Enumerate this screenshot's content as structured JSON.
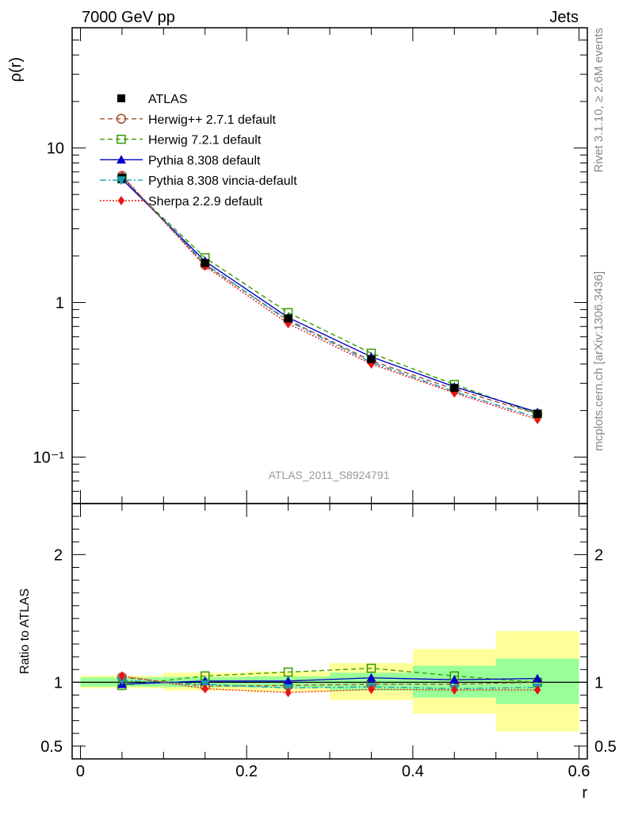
{
  "header": {
    "left": "7000 GeV pp",
    "right": "Jets"
  },
  "side": {
    "rivet": "Rivet 3.1.10, ≥ 2.6M events",
    "mcplots": "mcplots.cern.ch [arXiv:1306.3436]"
  },
  "watermark": "ATLAS_2011_S8924791",
  "chart_data": [
    {
      "type": "line",
      "panel": "main",
      "ylabel": "ρ(r)",
      "yscale": "log",
      "ylim": [
        0.05,
        60
      ],
      "xlim": [
        -0.01,
        0.61
      ],
      "ytick_labels": [
        "10⁻¹",
        "1",
        "10"
      ],
      "x": [
        0.05,
        0.15,
        0.25,
        0.35,
        0.45,
        0.55
      ],
      "series": [
        {
          "name": "ATLAS",
          "color": "#000000",
          "marker": "square-filled",
          "dash": "none",
          "values": [
            6.4,
            1.8,
            0.79,
            0.43,
            0.28,
            0.19
          ]
        },
        {
          "name": "Herwig++ 2.7.1 default",
          "color": "#a0522d",
          "marker": "circle-open",
          "dash": "dashed",
          "values": [
            6.6,
            1.75,
            0.77,
            0.42,
            0.275,
            0.19
          ]
        },
        {
          "name": "Herwig 7.2.1 default",
          "color": "#339900",
          "marker": "square-open",
          "dash": "dashed",
          "values": [
            6.3,
            1.95,
            0.86,
            0.47,
            0.295,
            0.19
          ]
        },
        {
          "name": "Pythia 8.308 default",
          "color": "#0000cc",
          "marker": "triangle-up",
          "dash": "solid",
          "values": [
            6.3,
            1.85,
            0.8,
            0.445,
            0.285,
            0.195
          ]
        },
        {
          "name": "Pythia 8.308 vincia-default",
          "color": "#1a9ab0",
          "marker": "triangle-down",
          "dash": "dashdot",
          "values": [
            6.5,
            1.78,
            0.76,
            0.41,
            0.265,
            0.18
          ]
        },
        {
          "name": "Sherpa 2.2.9 default",
          "color": "#ee1111",
          "marker": "diamond",
          "dash": "dotted",
          "values": [
            6.6,
            1.72,
            0.73,
            0.4,
            0.26,
            0.175
          ]
        }
      ]
    },
    {
      "type": "line",
      "panel": "ratio",
      "xlabel": "r",
      "ylabel": "Ratio to ATLAS",
      "ylim": [
        0.4,
        2.4
      ],
      "xlim": [
        -0.01,
        0.61
      ],
      "xtick_labels": [
        "0",
        "0.2",
        "0.4",
        "0.6"
      ],
      "ytick_labels": [
        "0.5",
        "1",
        "2"
      ],
      "bands": [
        {
          "x0": 0.0,
          "x1": 0.1,
          "yellow": [
            0.953,
            1.052
          ],
          "green": [
            0.966,
            1.038
          ]
        },
        {
          "x0": 0.1,
          "x1": 0.2,
          "yellow": [
            0.935,
            1.075
          ],
          "green": [
            0.962,
            1.042
          ]
        },
        {
          "x0": 0.2,
          "x1": 0.3,
          "yellow": [
            0.925,
            1.085
          ],
          "green": [
            0.958,
            1.046
          ]
        },
        {
          "x0": 0.3,
          "x1": 0.4,
          "yellow": [
            0.862,
            1.15
          ],
          "green": [
            0.935,
            1.075
          ]
        },
        {
          "x0": 0.4,
          "x1": 0.5,
          "yellow": [
            0.755,
            1.26
          ],
          "green": [
            0.88,
            1.13
          ]
        },
        {
          "x0": 0.5,
          "x1": 0.6,
          "yellow": [
            0.615,
            1.4
          ],
          "green": [
            0.83,
            1.185
          ]
        }
      ],
      "x": [
        0.05,
        0.15,
        0.25,
        0.35,
        0.45,
        0.55
      ],
      "series": [
        {
          "name": "Herwig++ 2.7.1 default",
          "values": [
            1.04,
            0.97,
            0.975,
            0.985,
            0.985,
            1.0
          ]
        },
        {
          "name": "Herwig 7.2.1 default",
          "values": [
            0.975,
            1.05,
            1.08,
            1.11,
            1.05,
            1.0
          ]
        },
        {
          "name": "Pythia 8.308 default",
          "values": [
            0.985,
            1.01,
            1.01,
            1.035,
            1.02,
            1.03
          ]
        },
        {
          "name": "Pythia 8.308 vincia-default",
          "values": [
            1.015,
            0.985,
            0.955,
            0.965,
            0.95,
            0.96
          ]
        },
        {
          "name": "Sherpa 2.2.9 default",
          "values": [
            1.05,
            0.95,
            0.92,
            0.945,
            0.94,
            0.94
          ]
        }
      ]
    }
  ]
}
